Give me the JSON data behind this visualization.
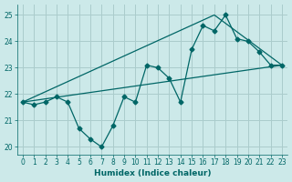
{
  "xlabel": "Humidex (Indice chaleur)",
  "ylabel": "",
  "bg_color": "#cce9e9",
  "line_color": "#006666",
  "grid_color": "#aacccc",
  "xlim": [
    -0.5,
    23.5
  ],
  "ylim": [
    19.7,
    25.4
  ],
  "xticks": [
    0,
    1,
    2,
    3,
    4,
    5,
    6,
    7,
    8,
    9,
    10,
    11,
    12,
    13,
    14,
    15,
    16,
    17,
    18,
    19,
    20,
    21,
    22,
    23
  ],
  "yticks": [
    20,
    21,
    22,
    23,
    24,
    25
  ],
  "line1_x": [
    0,
    1,
    2,
    3,
    4,
    5,
    6,
    7,
    8,
    9,
    10,
    11,
    12,
    13,
    14,
    15,
    16,
    17,
    18,
    19,
    20,
    21,
    22,
    23
  ],
  "line1_y": [
    21.7,
    21.6,
    21.7,
    21.9,
    21.7,
    20.7,
    20.3,
    20.0,
    20.8,
    21.9,
    21.7,
    23.1,
    23.0,
    22.6,
    21.7,
    23.7,
    24.6,
    24.4,
    25.0,
    24.1,
    24.0,
    23.6,
    23.1,
    23.1
  ],
  "line2_x": [
    0,
    23
  ],
  "line2_y": [
    21.7,
    23.1
  ],
  "line3_x": [
    0,
    17,
    23
  ],
  "line3_y": [
    21.7,
    25.0,
    23.1
  ]
}
